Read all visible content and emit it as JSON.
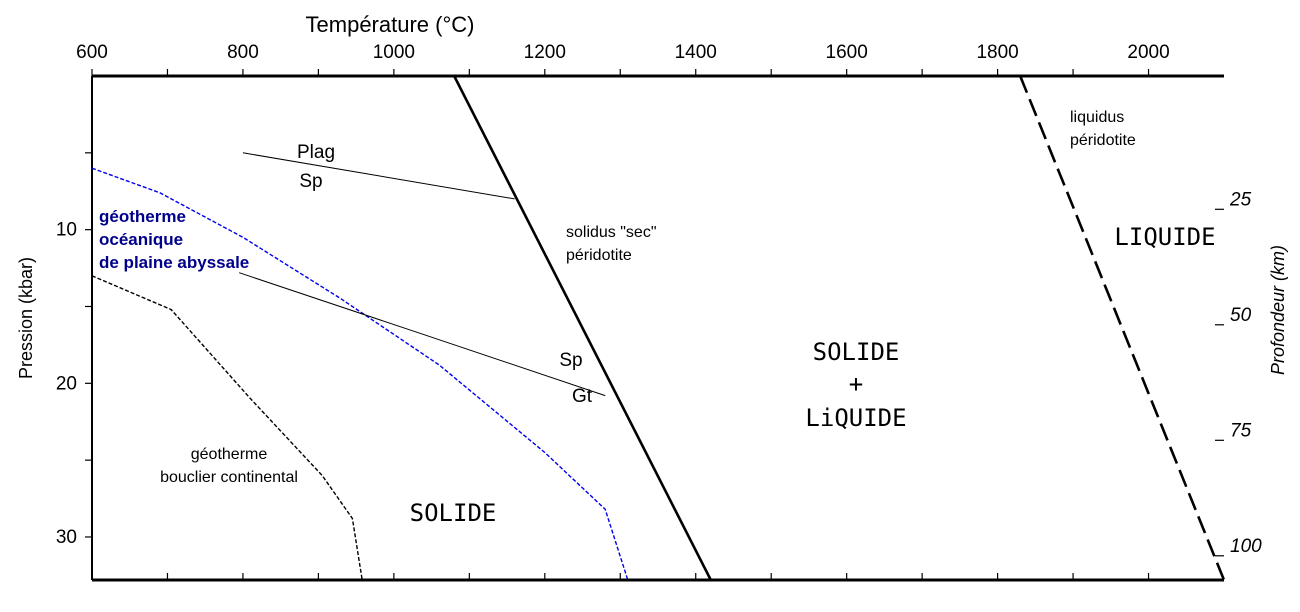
{
  "chart_data": {
    "type": "line",
    "xlabel": "Température (°C)",
    "ylabel_left": "Pression (kbar)",
    "ylabel_right": "Profondeur (km)",
    "x_ticks": [
      600,
      800,
      1000,
      1200,
      1400,
      1600,
      1800,
      2000
    ],
    "y_ticks_left": [
      10,
      20,
      30
    ],
    "y_ticks_right": [
      25,
      50,
      75,
      100
    ],
    "xlim": [
      600,
      2100
    ],
    "ylim": [
      0,
      32.8
    ],
    "grid": false,
    "series": [
      {
        "name": "solidus \"sec\" péridotite",
        "color": "#000000",
        "style": "solid",
        "points": [
          [
            1080,
            0
          ],
          [
            1420,
            32.8
          ]
        ]
      },
      {
        "name": "liquidus péridotite",
        "color": "#000000",
        "style": "dashed",
        "points": [
          [
            1830,
            0
          ],
          [
            2100,
            32.8
          ]
        ]
      },
      {
        "name": "géotherme océanique de plaine abyssale",
        "color": "#0000ee",
        "style": "dotted",
        "points": [
          [
            600,
            6
          ],
          [
            690,
            7.6
          ],
          [
            800,
            10.5
          ],
          [
            930,
            14.5
          ],
          [
            1060,
            18.8
          ],
          [
            1200,
            24.5
          ],
          [
            1280,
            28.2
          ],
          [
            1310,
            32.8
          ]
        ]
      },
      {
        "name": "géotherme bouclier continental",
        "color": "#000000",
        "style": "dotted",
        "points": [
          [
            600,
            13
          ],
          [
            705,
            15.2
          ],
          [
            810,
            21
          ],
          [
            905,
            26
          ],
          [
            945,
            28.8
          ],
          [
            958,
            32.8
          ]
        ]
      },
      {
        "name": "Plag/Sp",
        "color": "#000000",
        "style": "thin",
        "points": [
          [
            800,
            5
          ],
          [
            1160,
            8
          ]
        ]
      },
      {
        "name": "Sp/Gt",
        "color": "#000000",
        "style": "thin",
        "points": [
          [
            795,
            12.8
          ],
          [
            1050,
            17
          ],
          [
            1280,
            20.8
          ]
        ]
      }
    ],
    "annotations": {
      "plag": "Plag",
      "sp_upper": "Sp",
      "sp_lower": "Sp",
      "gt": "Gt",
      "solidus_line1": "solidus \"sec\"",
      "solidus_line2": "péridotite",
      "liquidus_line1": "liquidus",
      "liquidus_line2": "péridotite",
      "ocean_line1": "géotherme",
      "ocean_line2": "océanique",
      "ocean_line3": "de plaine abyssale",
      "cont_line1": "géotherme",
      "cont_line2": "bouclier continental",
      "solide": "SOLIDE",
      "solide_liquide_1": "SOLIDE",
      "solide_liquide_2": "+",
      "solide_liquide_3": "LiQUIDE",
      "liquide": "LIQUIDE"
    }
  },
  "colors": {
    "axis": "#000000",
    "oceanic": "#0000ee",
    "oceanic_label": "#00008b"
  }
}
